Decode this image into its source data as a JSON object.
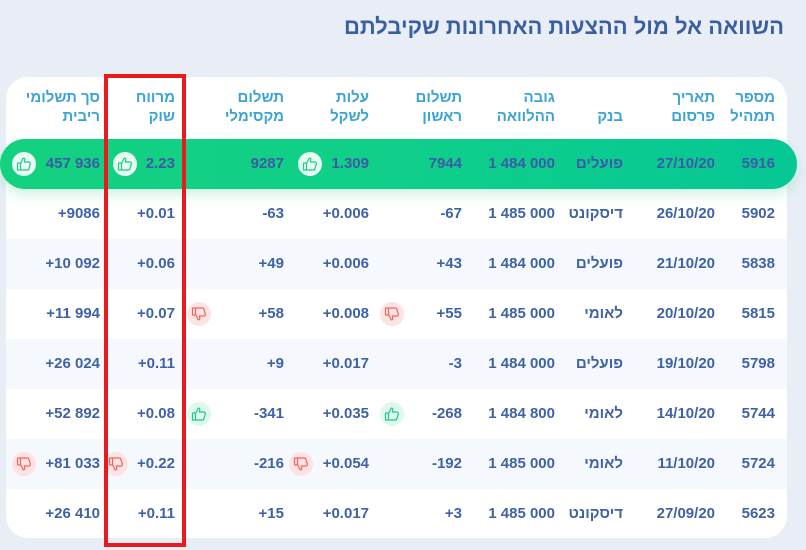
{
  "page": {
    "title": "השוואה אל מול ההצעות האחרונות שקיבלתם"
  },
  "table": {
    "columns": [
      {
        "key": "mix_id",
        "line1": "מספר",
        "line2": "תמהיל"
      },
      {
        "key": "date",
        "line1": "תאריך",
        "line2": "פרסום"
      },
      {
        "key": "bank",
        "line1": "",
        "line2": "בנק"
      },
      {
        "key": "loan_amount",
        "line1": "גובה",
        "line2": "ההלוואה"
      },
      {
        "key": "first_payment",
        "line1": "תשלום",
        "line2": "ראשון"
      },
      {
        "key": "cost_per_shekel",
        "line1": "עלות",
        "line2": "לשקל"
      },
      {
        "key": "max_payment",
        "line1": "תשלום",
        "line2": "מקסימלי"
      },
      {
        "key": "market_spread",
        "line1": "מרווח",
        "line2": "שוק"
      },
      {
        "key": "total_interest",
        "line1": "סך תשלומי",
        "line2": "ריבית"
      }
    ],
    "rows": [
      {
        "mix_id": "5916",
        "date": "27/10/20",
        "bank": "פועלים",
        "loan_amount": "1 484 000",
        "first_payment": "7944",
        "cost_per_shekel": "1.309",
        "max_payment": "9287",
        "market_spread": "2.23",
        "total_interest": "457 936",
        "highlighted": true,
        "icons": {
          "cost_per_shekel": "thumbs-up",
          "market_spread": "thumbs-up",
          "total_interest": "thumbs-up"
        }
      },
      {
        "mix_id": "5902",
        "date": "26/10/20",
        "bank": "דיסקונט",
        "loan_amount": "1 485 000",
        "first_payment": "-67",
        "cost_per_shekel": "+0.006",
        "max_payment": "-63",
        "market_spread": "+0.01",
        "total_interest": "+9086",
        "icons": {}
      },
      {
        "mix_id": "5838",
        "date": "21/10/20",
        "bank": "פועלים",
        "loan_amount": "1 484 000",
        "first_payment": "+43",
        "cost_per_shekel": "+0.006",
        "max_payment": "+49",
        "market_spread": "+0.06",
        "total_interest": "+10 092",
        "icons": {}
      },
      {
        "mix_id": "5815",
        "date": "20/10/20",
        "bank": "לאומי",
        "loan_amount": "1 485 000",
        "first_payment": "+55",
        "cost_per_shekel": "+0.008",
        "max_payment": "+58",
        "market_spread": "+0.07",
        "total_interest": "+11 994",
        "icons": {
          "first_payment": "thumbs-down",
          "max_payment": "thumbs-down"
        }
      },
      {
        "mix_id": "5798",
        "date": "19/10/20",
        "bank": "פועלים",
        "loan_amount": "1 484 000",
        "first_payment": "-3",
        "cost_per_shekel": "+0.017",
        "max_payment": "+9",
        "market_spread": "+0.11",
        "total_interest": "+26 024",
        "icons": {}
      },
      {
        "mix_id": "5744",
        "date": "14/10/20",
        "bank": "לאומי",
        "loan_amount": "1 484 800",
        "first_payment": "-268",
        "cost_per_shekel": "+0.035",
        "max_payment": "-341",
        "market_spread": "+0.08",
        "total_interest": "+52 892",
        "icons": {
          "first_payment": "thumbs-up",
          "max_payment": "thumbs-up"
        }
      },
      {
        "mix_id": "5724",
        "date": "11/10/20",
        "bank": "לאומי",
        "loan_amount": "1 485 000",
        "first_payment": "-192",
        "cost_per_shekel": "+0.054",
        "max_payment": "-216",
        "market_spread": "+0.22",
        "total_interest": "+81 033",
        "icons": {
          "cost_per_shekel": "thumbs-down",
          "market_spread": "thumbs-down",
          "total_interest": "thumbs-down"
        }
      },
      {
        "mix_id": "5623",
        "date": "27/09/20",
        "bank": "דיסקונט",
        "loan_amount": "1 485 000",
        "first_payment": "+3",
        "cost_per_shekel": "+0.017",
        "max_payment": "+15",
        "market_spread": "+0.11",
        "total_interest": "+26 410",
        "icons": {}
      }
    ]
  },
  "annotation": {
    "highlighted_column": "מרווח שוק",
    "color": "#e8191f"
  },
  "colors": {
    "title": "#3a5fa0",
    "header_text": "#3aa3d6",
    "cell_text": "#3f62a6",
    "best_row": "#0fcf8a",
    "thumbs_up": "#1fc98a",
    "thumbs_down": "#f0635f",
    "page_bg": "#e9eef6"
  }
}
